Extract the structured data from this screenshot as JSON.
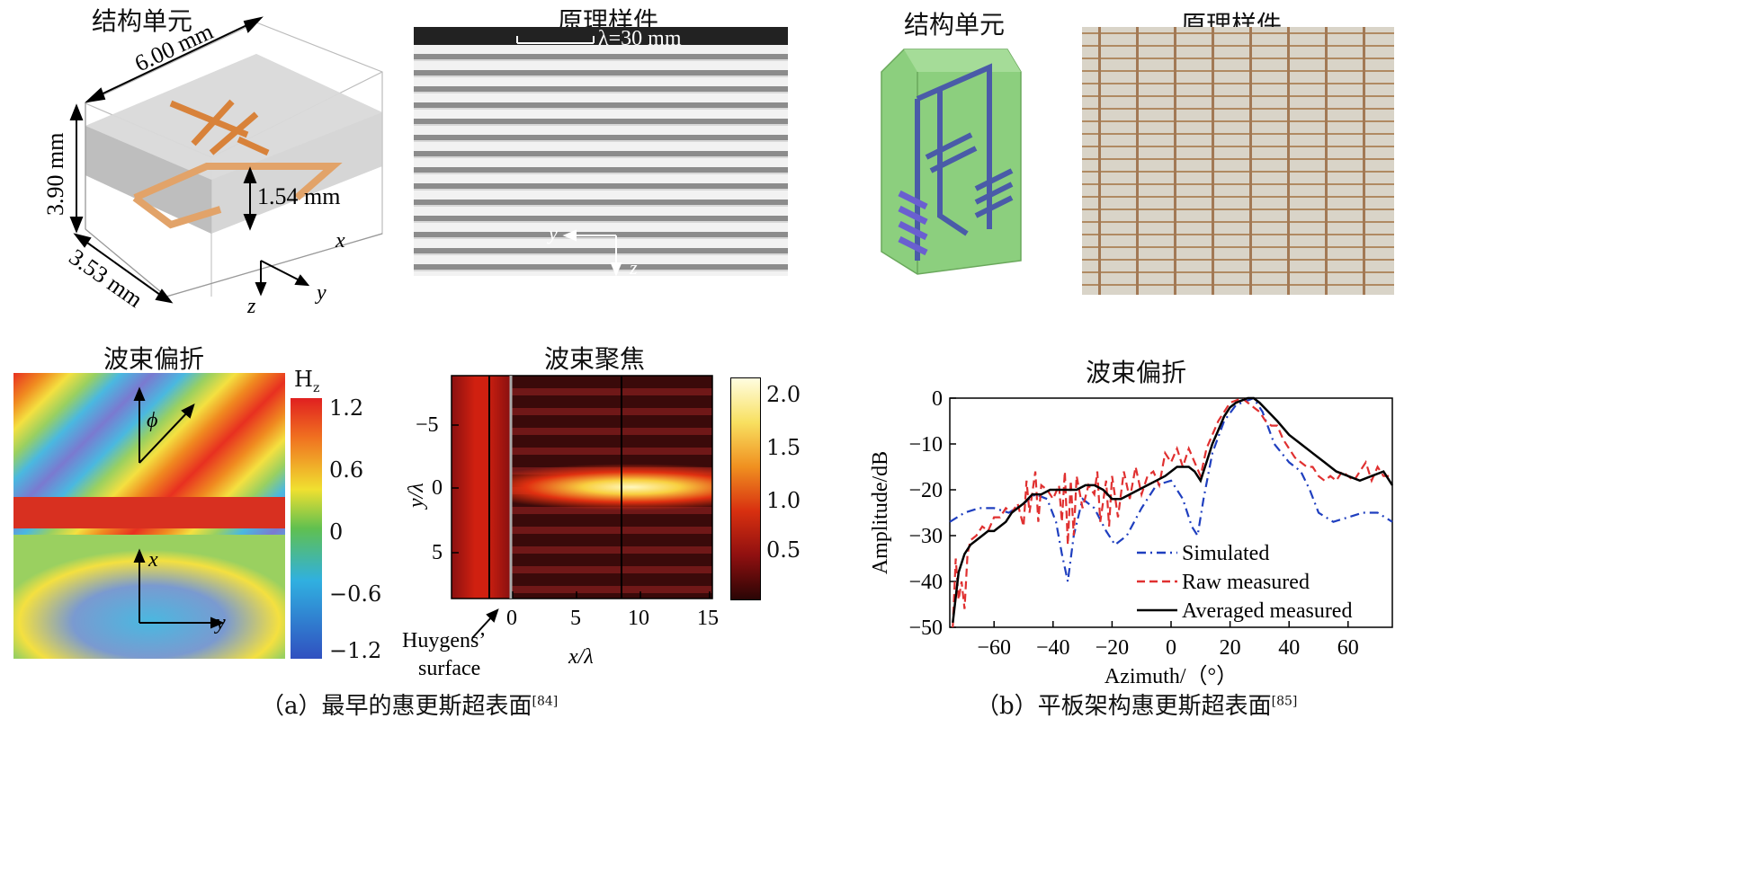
{
  "titles": {
    "a_unit": "结构单元",
    "a_sample": "原理样件",
    "b_unit": "结构单元",
    "b_sample": "原理样件",
    "a_deflect": "波束偏折",
    "a_focus": "波束聚焦",
    "b_deflect": "波束偏折"
  },
  "unit_cell": {
    "dim_len": "6.00 mm",
    "dim_height": "3.90 mm",
    "dim_depth": "3.53 mm",
    "dim_sub": "1.54 mm",
    "axis_x": "x",
    "axis_y": "y",
    "axis_z": "z"
  },
  "sample_a": {
    "scale_label": "λ=30 mm",
    "axis_y": "y",
    "axis_z": "z"
  },
  "deflect_a": {
    "colorbar_title": "H",
    "colorbar_sub": "z",
    "ticks": [
      "1.2",
      "0.6",
      "0",
      "−0.6",
      "−1.2"
    ],
    "phi": "ϕ",
    "axis_x": "x",
    "axis_y": "y"
  },
  "focus_a": {
    "yticks": [
      "−5",
      "0",
      "5"
    ],
    "xticks": [
      "0",
      "5",
      "10",
      "15"
    ],
    "colorbar_ticks": [
      "2.0",
      "1.5",
      "1.0",
      "0.5"
    ],
    "ylabel": "y/λ",
    "xlabel": "x/λ",
    "annotation_1": "Huygens’",
    "annotation_2": "surface"
  },
  "chart_data": {
    "type": "line",
    "title": "波束偏折",
    "xlabel": "Azimuth/（°）",
    "ylabel": "Amplitude/dB",
    "xlim": [
      -75,
      75
    ],
    "ylim": [
      -50,
      0
    ],
    "xticks": [
      "−60",
      "−40",
      "−20",
      "0",
      "20",
      "40",
      "60"
    ],
    "yticks": [
      "0",
      "−10",
      "−20",
      "−30",
      "−40",
      "−50"
    ],
    "legend_position": "lower-right",
    "series": [
      {
        "name": "Simulated",
        "color": "#1f3fbf",
        "style": "dash-dot",
        "x": [
          -75,
          -70,
          -65,
          -60,
          -55,
          -50,
          -46,
          -42,
          -39,
          -37,
          -35,
          -33,
          -30,
          -26,
          -22,
          -19,
          -15,
          -10,
          -5,
          0,
          4,
          7,
          9,
          11,
          14,
          18,
          22,
          26,
          28,
          31,
          35,
          40,
          44,
          47,
          50,
          55,
          60,
          65,
          70,
          75
        ],
        "y": [
          -27,
          -25,
          -24,
          -24,
          -25,
          -23,
          -21,
          -22,
          -27,
          -34,
          -40,
          -30,
          -22,
          -24,
          -29,
          -32,
          -30,
          -24,
          -19,
          -18,
          -22,
          -28,
          -30,
          -22,
          -12,
          -5,
          -1.5,
          -0.5,
          0,
          -3,
          -10,
          -14,
          -16,
          -20,
          -25,
          -27,
          -26,
          -25,
          -25,
          -27
        ]
      },
      {
        "name": "Raw measured",
        "color": "#e03030",
        "style": "dash",
        "x": [
          -74,
          -73,
          -72,
          -71,
          -70,
          -69,
          -68,
          -66,
          -64,
          -62,
          -60,
          -58,
          -56,
          -54,
          -52,
          -50,
          -49,
          -48,
          -46,
          -45,
          -44,
          -42,
          -40,
          -38,
          -37,
          -36,
          -35,
          -34,
          -33,
          -32,
          -30,
          -28,
          -26,
          -25,
          -24,
          -22,
          -21,
          -20,
          -18,
          -16,
          -14,
          -12,
          -10,
          -8,
          -6,
          -4,
          -2,
          0,
          2,
          4,
          6,
          8,
          10,
          12,
          14,
          16,
          18,
          20,
          22,
          24,
          26,
          28,
          30,
          32,
          34,
          36,
          38,
          40,
          42,
          44,
          46,
          48,
          50,
          52,
          54,
          56,
          58,
          60,
          62,
          64,
          66,
          68,
          70,
          72,
          74
        ],
        "y": [
          -50,
          -35,
          -44,
          -40,
          -46,
          -34,
          -31,
          -30,
          -28,
          -29,
          -26,
          -26,
          -24,
          -25,
          -23,
          -28,
          -18,
          -25,
          -16,
          -27,
          -19,
          -20,
          -22,
          -19,
          -27,
          -16,
          -32,
          -18,
          -30,
          -17,
          -24,
          -19,
          -21,
          -16,
          -27,
          -18,
          -28,
          -17,
          -26,
          -16,
          -22,
          -15,
          -21,
          -17,
          -16,
          -19,
          -12,
          -14,
          -11,
          -15,
          -11,
          -14,
          -17,
          -11,
          -8,
          -5,
          -3,
          -1,
          -0.5,
          0,
          -1,
          -2,
          -3,
          -5,
          -6,
          -6,
          -9,
          -11,
          -13,
          -14,
          -15,
          -15,
          -17,
          -18,
          -17,
          -18,
          -16,
          -17,
          -18,
          -16,
          -14,
          -18,
          -15,
          -17,
          -17
        ]
      },
      {
        "name": "Averaged measured",
        "color": "#000000",
        "style": "solid",
        "x": [
          -74,
          -72,
          -70,
          -68,
          -66,
          -64,
          -62,
          -60,
          -58,
          -56,
          -54,
          -52,
          -50,
          -47,
          -44,
          -41,
          -38,
          -35,
          -32,
          -29,
          -26,
          -23,
          -20,
          -17,
          -14,
          -11,
          -8,
          -5,
          -2,
          0,
          2,
          4,
          6,
          8,
          10,
          12,
          14,
          16,
          18,
          20,
          22,
          24,
          26,
          28,
          30,
          33,
          36,
          40,
          44,
          48,
          52,
          56,
          60,
          64,
          68,
          72,
          75
        ],
        "y": [
          -49,
          -38,
          -34,
          -32,
          -31,
          -30,
          -29,
          -29,
          -28,
          -27,
          -25,
          -24,
          -23,
          -21,
          -21,
          -20,
          -20,
          -20,
          -20,
          -19,
          -19,
          -20,
          -22,
          -22,
          -21,
          -20,
          -19,
          -18,
          -17,
          -16,
          -15,
          -15,
          -15,
          -16,
          -18,
          -14,
          -10,
          -7,
          -4,
          -2,
          -1,
          -0.5,
          0,
          0,
          -1,
          -3,
          -5,
          -8,
          -10,
          -12,
          -14,
          -16,
          -17,
          -18,
          -17,
          -16,
          -19
        ]
      }
    ]
  },
  "captions": {
    "a": "（a）最早的惠更斯超表面",
    "a_ref": "[84]",
    "b": "（b）平板架构惠更斯超表面",
    "b_ref": "[85]"
  }
}
